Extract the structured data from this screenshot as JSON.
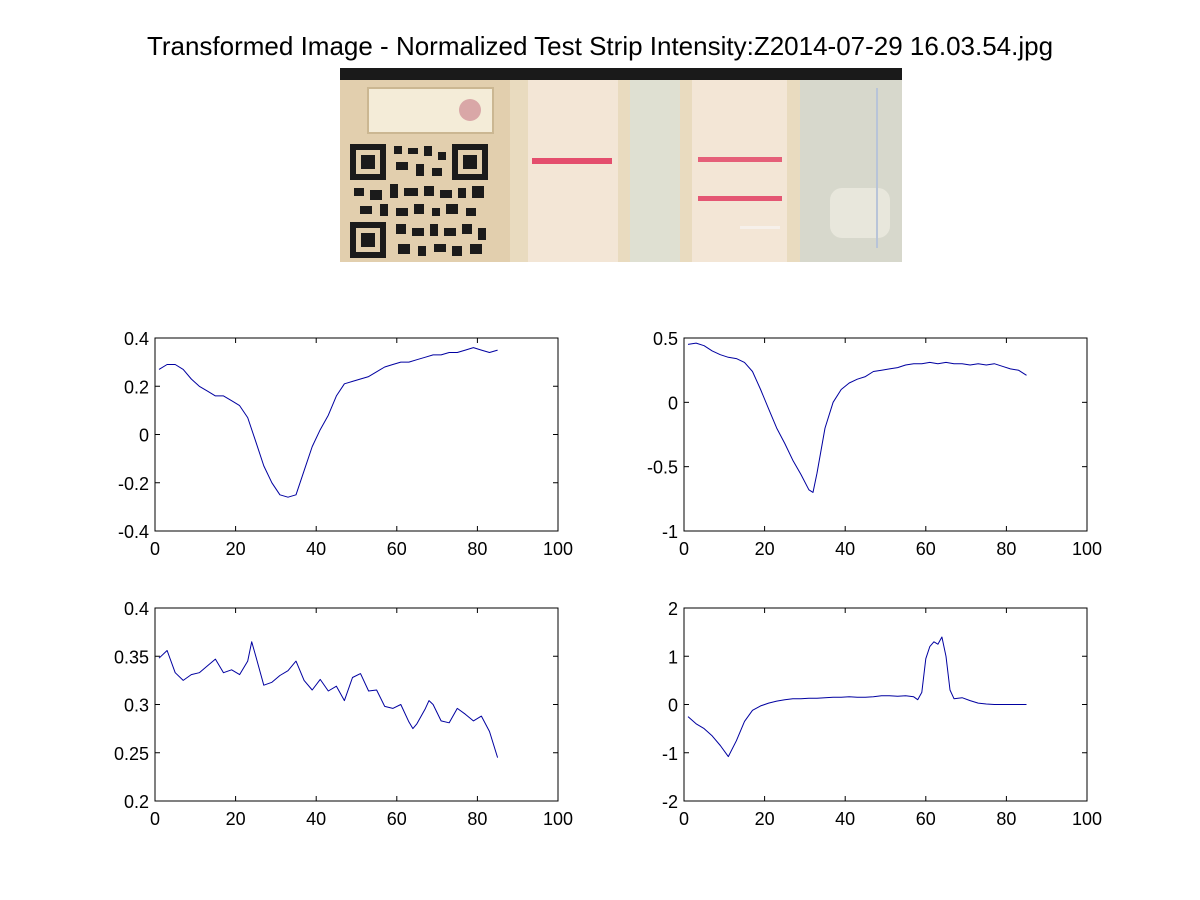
{
  "figure": {
    "title": "Transformed Image - Normalized Test Strip Intensity:Z2014-07-29 16.03.54.jpg"
  },
  "image": {
    "description_icon": "test-strip-photo",
    "colors": {
      "line_red": "#e0325a",
      "strip_bg": "#f3e6d6",
      "cassette": "#e4d3b4"
    }
  },
  "chart_data": [
    {
      "type": "line",
      "title": "",
      "xlabel": "",
      "ylabel": "",
      "xlim": [
        0,
        100
      ],
      "ylim": [
        -0.4,
        0.4
      ],
      "xticks": [
        0,
        20,
        40,
        60,
        80,
        100
      ],
      "yticks": [
        -0.4,
        -0.2,
        0,
        0.2,
        0.4
      ],
      "xtick_labels": [
        "0",
        "20",
        "40",
        "60",
        "80",
        "100"
      ],
      "ytick_labels": [
        "-0.4",
        "-0.2",
        "0",
        "0.2",
        "0.4"
      ],
      "grid": false,
      "color": "#0000a0",
      "series": [
        {
          "x": [
            1,
            3,
            5,
            7,
            9,
            11,
            13,
            15,
            17,
            19,
            21,
            23,
            25,
            27,
            29,
            31,
            33,
            35,
            37,
            39,
            41,
            43,
            45,
            47,
            49,
            51,
            53,
            55,
            57,
            59,
            61,
            63,
            65,
            67,
            69,
            71,
            73,
            75,
            77,
            79,
            81,
            83,
            85
          ],
          "values": [
            0.27,
            0.29,
            0.29,
            0.27,
            0.23,
            0.2,
            0.18,
            0.16,
            0.16,
            0.14,
            0.12,
            0.07,
            -0.03,
            -0.13,
            -0.2,
            -0.25,
            -0.26,
            -0.25,
            -0.15,
            -0.05,
            0.02,
            0.08,
            0.16,
            0.21,
            0.22,
            0.23,
            0.24,
            0.26,
            0.28,
            0.29,
            0.3,
            0.3,
            0.31,
            0.32,
            0.33,
            0.33,
            0.34,
            0.34,
            0.35,
            0.36,
            0.35,
            0.34,
            0.35
          ]
        }
      ]
    },
    {
      "type": "line",
      "title": "",
      "xlabel": "",
      "ylabel": "",
      "xlim": [
        0,
        100
      ],
      "ylim": [
        -1,
        0.5
      ],
      "xticks": [
        0,
        20,
        40,
        60,
        80,
        100
      ],
      "yticks": [
        -1,
        -0.5,
        0,
        0.5
      ],
      "xtick_labels": [
        "0",
        "20",
        "40",
        "60",
        "80",
        "100"
      ],
      "ytick_labels": [
        "-1",
        "-0.5",
        "0",
        "0.5"
      ],
      "grid": false,
      "color": "#0000a0",
      "series": [
        {
          "x": [
            1,
            3,
            5,
            7,
            9,
            11,
            13,
            15,
            17,
            19,
            21,
            23,
            25,
            27,
            29,
            31,
            32,
            33,
            35,
            37,
            39,
            41,
            43,
            45,
            47,
            49,
            51,
            53,
            55,
            57,
            59,
            61,
            63,
            65,
            67,
            69,
            71,
            73,
            75,
            77,
            79,
            81,
            83,
            85
          ],
          "values": [
            0.45,
            0.46,
            0.44,
            0.4,
            0.37,
            0.35,
            0.34,
            0.31,
            0.24,
            0.1,
            -0.05,
            -0.2,
            -0.32,
            -0.45,
            -0.56,
            -0.68,
            -0.7,
            -0.55,
            -0.2,
            0.0,
            0.1,
            0.15,
            0.18,
            0.2,
            0.24,
            0.25,
            0.26,
            0.27,
            0.29,
            0.3,
            0.3,
            0.31,
            0.3,
            0.31,
            0.3,
            0.3,
            0.29,
            0.3,
            0.29,
            0.3,
            0.28,
            0.26,
            0.25,
            0.21
          ]
        }
      ]
    },
    {
      "type": "line",
      "title": "",
      "xlabel": "",
      "ylabel": "",
      "xlim": [
        0,
        100
      ],
      "ylim": [
        0.2,
        0.4
      ],
      "xticks": [
        0,
        20,
        40,
        60,
        80,
        100
      ],
      "yticks": [
        0.2,
        0.25,
        0.3,
        0.35,
        0.4
      ],
      "xtick_labels": [
        "0",
        "20",
        "40",
        "60",
        "80",
        "100"
      ],
      "ytick_labels": [
        "0.2",
        "0.25",
        "0.3",
        "0.35",
        "0.4"
      ],
      "grid": false,
      "color": "#0000a0",
      "series": [
        {
          "x": [
            1,
            3,
            5,
            7,
            9,
            11,
            13,
            15,
            17,
            19,
            21,
            23,
            24,
            25,
            27,
            29,
            31,
            33,
            35,
            37,
            39,
            41,
            43,
            45,
            47,
            49,
            51,
            53,
            55,
            57,
            59,
            61,
            63,
            64,
            65,
            67,
            68,
            69,
            71,
            73,
            75,
            77,
            79,
            81,
            83,
            85
          ],
          "values": [
            0.348,
            0.356,
            0.333,
            0.325,
            0.331,
            0.333,
            0.34,
            0.347,
            0.333,
            0.336,
            0.331,
            0.345,
            0.365,
            0.35,
            0.32,
            0.323,
            0.33,
            0.335,
            0.345,
            0.325,
            0.315,
            0.326,
            0.314,
            0.319,
            0.304,
            0.328,
            0.332,
            0.314,
            0.315,
            0.298,
            0.296,
            0.3,
            0.282,
            0.275,
            0.28,
            0.295,
            0.304,
            0.3,
            0.283,
            0.281,
            0.296,
            0.29,
            0.283,
            0.288,
            0.272,
            0.245
          ]
        }
      ]
    },
    {
      "type": "line",
      "title": "",
      "xlabel": "",
      "ylabel": "",
      "xlim": [
        0,
        100
      ],
      "ylim": [
        -2,
        2
      ],
      "xticks": [
        0,
        20,
        40,
        60,
        80,
        100
      ],
      "yticks": [
        -2,
        -1,
        0,
        1,
        2
      ],
      "xtick_labels": [
        "0",
        "20",
        "40",
        "60",
        "80",
        "100"
      ],
      "ytick_labels": [
        "-2",
        "-1",
        "0",
        "1",
        "2"
      ],
      "grid": false,
      "color": "#0000a0",
      "series": [
        {
          "x": [
            1,
            3,
            5,
            7,
            9,
            11,
            13,
            15,
            17,
            19,
            21,
            23,
            25,
            27,
            29,
            31,
            33,
            35,
            37,
            39,
            41,
            43,
            45,
            47,
            49,
            51,
            53,
            55,
            57,
            58,
            59,
            60,
            61,
            62,
            63,
            64,
            65,
            66,
            67,
            69,
            71,
            73,
            75,
            77,
            79,
            81,
            83,
            85
          ],
          "values": [
            -0.25,
            -0.4,
            -0.5,
            -0.65,
            -0.85,
            -1.08,
            -0.75,
            -0.35,
            -0.12,
            -0.03,
            0.03,
            0.07,
            0.1,
            0.12,
            0.12,
            0.13,
            0.13,
            0.14,
            0.15,
            0.15,
            0.16,
            0.15,
            0.15,
            0.16,
            0.18,
            0.18,
            0.17,
            0.18,
            0.16,
            0.1,
            0.25,
            0.95,
            1.2,
            1.3,
            1.25,
            1.4,
            1.0,
            0.3,
            0.12,
            0.14,
            0.08,
            0.03,
            0.01,
            0.0,
            0.0,
            0.0,
            0.0,
            0.0
          ]
        }
      ]
    }
  ]
}
